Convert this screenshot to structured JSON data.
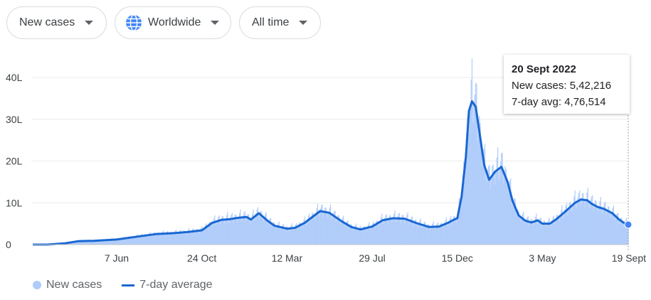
{
  "controls": {
    "metric": "New cases",
    "region": "Worldwide",
    "range": "All time"
  },
  "tooltip": {
    "date": "20 Sept 2022",
    "new_cases_label": "New cases: 5,42,216",
    "avg_label": "7-day avg: 4,76,514"
  },
  "legend": {
    "bars": "New cases",
    "line": "7-day average"
  },
  "colors": {
    "bars": "#aecbfa",
    "line": "#1967d2",
    "grid": "#ebebeb",
    "axis": "#bdc1c6"
  },
  "icons": {
    "region": "globe-icon",
    "dropdown": "caret-down-icon"
  },
  "chart_data": {
    "type": "area",
    "title": "",
    "xlabel": "",
    "ylabel": "",
    "y_unit": "L (lakh)",
    "ylim": [
      0,
      40
    ],
    "y_ticks": [
      "0",
      "10L",
      "20L",
      "30L",
      "40L"
    ],
    "y_tick_values": [
      0,
      10,
      20,
      30,
      40
    ],
    "x_tick_labels": [
      "7 Jun",
      "24 Oct",
      "12 Mar",
      "29 Jul",
      "15 Dec",
      "3 May",
      "19 Sept"
    ],
    "x_tick_dates": [
      "2020-06-07",
      "2020-10-24",
      "2021-03-12",
      "2021-07-29",
      "2021-12-15",
      "2022-05-03",
      "2022-09-19"
    ],
    "grid": true,
    "legend_position": "bottom-left",
    "series": [
      {
        "name": "7-day average",
        "style": "line",
        "dates": [
          "2020-01-22",
          "2020-02-15",
          "2020-03-15",
          "2020-04-05",
          "2020-05-01",
          "2020-06-07",
          "2020-07-15",
          "2020-08-10",
          "2020-09-05",
          "2020-10-01",
          "2020-10-24",
          "2020-11-10",
          "2020-11-25",
          "2020-12-10",
          "2020-12-22",
          "2021-01-05",
          "2021-01-12",
          "2021-01-25",
          "2021-02-10",
          "2021-02-20",
          "2021-03-12",
          "2021-03-25",
          "2021-04-10",
          "2021-04-25",
          "2021-05-05",
          "2021-05-20",
          "2021-06-10",
          "2021-06-25",
          "2021-07-10",
          "2021-07-29",
          "2021-08-15",
          "2021-09-01",
          "2021-09-20",
          "2021-10-10",
          "2021-10-30",
          "2021-11-15",
          "2021-11-30",
          "2021-12-10",
          "2021-12-15",
          "2021-12-22",
          "2021-12-29",
          "2022-01-03",
          "2022-01-08",
          "2022-01-14",
          "2022-01-20",
          "2022-01-28",
          "2022-02-05",
          "2022-02-15",
          "2022-02-25",
          "2022-03-07",
          "2022-03-15",
          "2022-03-25",
          "2022-04-05",
          "2022-04-15",
          "2022-04-25",
          "2022-05-03",
          "2022-05-15",
          "2022-05-25",
          "2022-06-10",
          "2022-06-25",
          "2022-07-05",
          "2022-07-15",
          "2022-07-22",
          "2022-08-01",
          "2022-08-12",
          "2022-08-25",
          "2022-09-05",
          "2022-09-15",
          "2022-09-20"
        ],
        "values": [
          0,
          0,
          0.3,
          0.8,
          0.9,
          1.2,
          2.0,
          2.5,
          2.7,
          3.0,
          3.4,
          5.2,
          5.9,
          6.1,
          6.4,
          6.6,
          6.0,
          7.5,
          5.5,
          4.5,
          3.8,
          4.0,
          5.2,
          6.9,
          8.0,
          7.6,
          5.5,
          4.2,
          3.6,
          4.3,
          5.8,
          6.3,
          6.2,
          5.1,
          4.2,
          4.3,
          5.2,
          6.0,
          6.3,
          11.5,
          21.0,
          32.0,
          34.3,
          33.0,
          27.0,
          19.0,
          15.5,
          17.5,
          18.6,
          15.0,
          10.5,
          7.0,
          5.7,
          5.3,
          5.8,
          5.0,
          5.0,
          6.0,
          8.0,
          10.0,
          10.8,
          10.6,
          9.8,
          9.0,
          8.5,
          7.5,
          6.0,
          5.0,
          4.77
        ]
      },
      {
        "name": "New cases",
        "style": "bars",
        "selected": {
          "date": "2022-09-20",
          "value": 5.42216
        },
        "note": "daily bars approximate the 7-day average with periodic spikes"
      }
    ]
  }
}
